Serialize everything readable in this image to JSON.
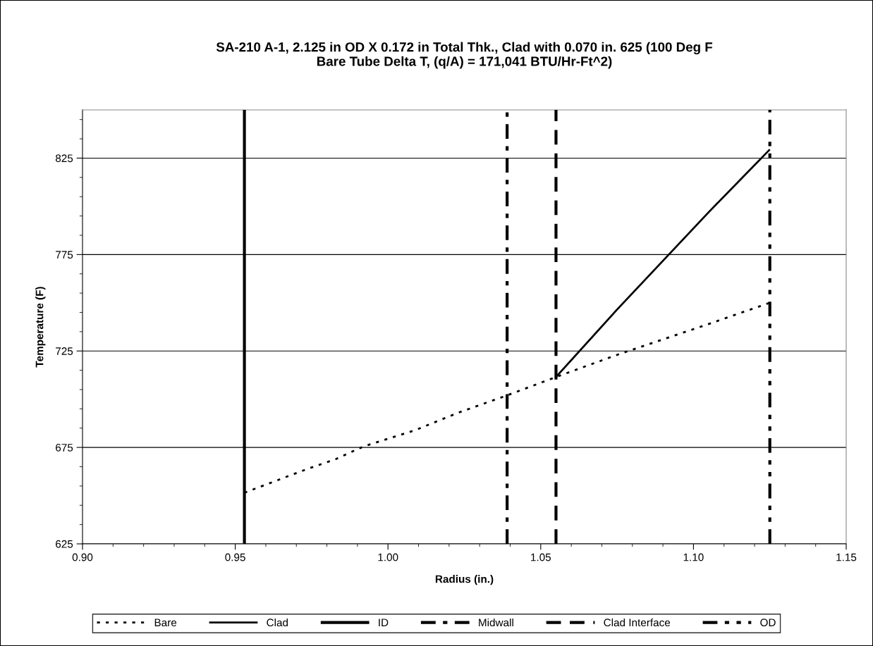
{
  "chart_data": {
    "type": "line",
    "title": "SA-210 A-1, 2.125 in OD X 0.172 in Total Thk., Clad with 0.070 in. 625 (100 Deg F\nBare Tube Delta T, (q/A) = 171,041 BTU/Hr-Ft^2)",
    "xlabel": "Radius (in.)",
    "ylabel": "Temperature (F)",
    "xlim": [
      0.9,
      1.15
    ],
    "xticks": [
      {
        "value": 0.9,
        "label": "0.90"
      },
      {
        "value": 0.95,
        "label": "0.95"
      },
      {
        "value": 1.0,
        "label": "1.00"
      },
      {
        "value": 1.05,
        "label": "1.05"
      },
      {
        "value": 1.1,
        "label": "1.10"
      },
      {
        "value": 1.15,
        "label": "1.15"
      }
    ],
    "ylim": [
      625,
      850
    ],
    "yticks": [
      625,
      675,
      725,
      775,
      825
    ],
    "grid": "y",
    "legend": "bottom",
    "series": [
      {
        "name": "Bare",
        "color": "#000000",
        "line_style": "dotted",
        "x": [
          0.953,
          0.973,
          0.983,
          0.992,
          1.009,
          1.023,
          1.039,
          1.055,
          1.075,
          1.105,
          1.125
        ],
        "values": [
          651.5,
          663.5,
          669,
          675.5,
          684,
          693,
          702,
          711.5,
          723,
          739,
          750
        ]
      },
      {
        "name": "Clad",
        "color": "#000000",
        "line_style": "solid",
        "x": [
          1.055,
          1.075,
          1.105,
          1.125
        ],
        "values": [
          711.5,
          746.5,
          797,
          829.5
        ]
      },
      {
        "name": "ID",
        "color": "#000000",
        "line_style": "solid",
        "x": [
          0.953,
          0.953
        ],
        "values": [
          625,
          850
        ]
      },
      {
        "name": "Midwall",
        "color": "#000000",
        "line_style": "dashdot",
        "x": [
          1.039,
          1.039
        ],
        "values": [
          625,
          850
        ]
      },
      {
        "name": "Clad Interface",
        "color": "#000000",
        "line_style": "dashed",
        "x": [
          1.055,
          1.055
        ],
        "values": [
          625,
          850
        ]
      },
      {
        "name": "OD",
        "color": "#000000",
        "line_style": "dashdotdot",
        "x": [
          1.125,
          1.125
        ],
        "values": [
          625,
          850
        ]
      }
    ]
  }
}
